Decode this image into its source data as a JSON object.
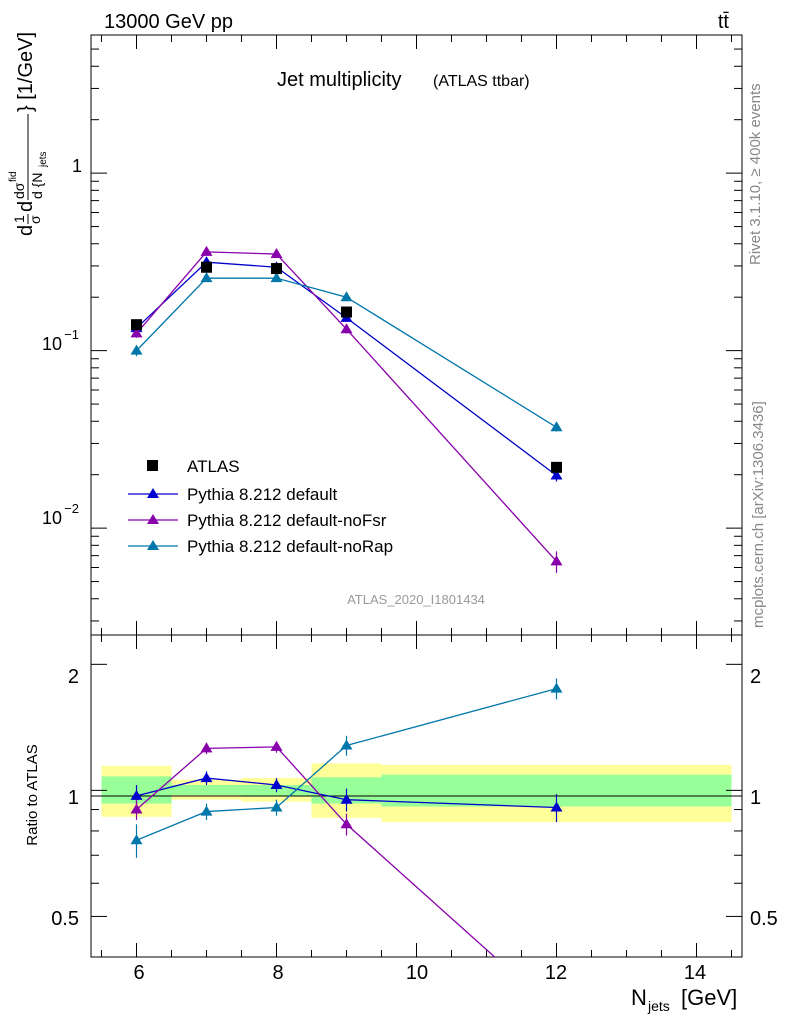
{
  "header": {
    "energy": "13000 GeV pp",
    "process": "tt̄"
  },
  "side": {
    "rivet": "Rivet 3.1.10, ≥ 400k events",
    "source": "mcplots.cern.ch [arXiv:1306.3436]"
  },
  "chart_data": {
    "type": "line",
    "title": "Jet multiplicity",
    "subtitle": "(ATLAS ttbar)",
    "analysis_tag": "ATLAS_2020_I1801434",
    "xlabel": "N",
    "xlabel_sub": "jets",
    "xlabel_unit": "[GeV]",
    "ylabel": "d{1/σ dσ^fid/d{N_jets}} [1/GeV]",
    "ylabel_ratio": "Ratio to ATLAS",
    "xlim": [
      5.35,
      14.65
    ],
    "ylim": [
      0.0025,
      6.0
    ],
    "y_scale": "log",
    "ratio_ylim": [
      0.4,
      2.35
    ],
    "ratio_scale": "log",
    "x_ticks": [
      "6",
      "8",
      "10",
      "12",
      "14"
    ],
    "y_ticks": [
      "10^-2",
      "10^-1",
      "1"
    ],
    "ratio_ticks": [
      "0.5",
      "1",
      "2"
    ],
    "legend_position": "bottom-left",
    "data": {
      "name": "ATLAS",
      "x": [
        6,
        7,
        8,
        9,
        12
      ],
      "y": [
        0.14,
        0.295,
        0.29,
        0.165,
        0.022
      ],
      "color": "#000000"
    },
    "bands": [
      {
        "x_from": 5.5,
        "x_to": 6.5,
        "inner": [
          0.93,
          1.08
        ],
        "outer": [
          0.865,
          1.145
        ]
      },
      {
        "x_from": 6.5,
        "x_to": 7.5,
        "inner": [
          0.975,
          1.03
        ],
        "outer": [
          0.95,
          1.06
        ]
      },
      {
        "x_from": 7.5,
        "x_to": 8.5,
        "inner": [
          0.97,
          1.03
        ],
        "outer": [
          0.94,
          1.07
        ]
      },
      {
        "x_from": 8.5,
        "x_to": 9.5,
        "inner": [
          0.93,
          1.075
        ],
        "outer": [
          0.86,
          1.16
        ]
      },
      {
        "x_from": 9.5,
        "x_to": 14.5,
        "inner": [
          0.915,
          1.09
        ],
        "outer": [
          0.84,
          1.15
        ]
      }
    ],
    "series": [
      {
        "name": "Pythia 8.212 default",
        "color": "#0000cc",
        "x": [
          6,
          7,
          8,
          9,
          12
        ],
        "y": [
          0.134,
          0.315,
          0.295,
          0.153,
          0.0198
        ],
        "yerr": [
          0.007,
          0.01,
          0.01,
          0.007,
          0.0015
        ],
        "ratio": [
          0.97,
          1.07,
          1.03,
          0.95,
          0.91
        ],
        "ratio_err": [
          0.06,
          0.04,
          0.04,
          0.06,
          0.07
        ]
      },
      {
        "name": "Pythia 8.212 default-noFsr",
        "color": "#8800aa",
        "x": [
          6,
          7,
          8,
          9,
          12
        ],
        "y": [
          0.125,
          0.36,
          0.35,
          0.132,
          0.0065
        ],
        "yerr": [
          0.007,
          0.01,
          0.01,
          0.007,
          0.0009
        ],
        "ratio": [
          0.9,
          1.26,
          1.27,
          0.83,
          0.295
        ],
        "ratio_err": [
          0.05,
          0.04,
          0.04,
          0.05,
          0.04
        ]
      },
      {
        "name": "Pythia 8.212 default-noRap",
        "color": "#0077aa",
        "x": [
          6,
          7,
          8,
          9,
          12
        ],
        "y": [
          0.1,
          0.256,
          0.256,
          0.2,
          0.037
        ],
        "yerr": [
          0.007,
          0.01,
          0.01,
          0.009,
          0.002
        ],
        "ratio": [
          0.76,
          0.89,
          0.91,
          1.28,
          1.75
        ],
        "ratio_err": [
          0.07,
          0.04,
          0.04,
          0.07,
          0.1
        ]
      }
    ]
  }
}
